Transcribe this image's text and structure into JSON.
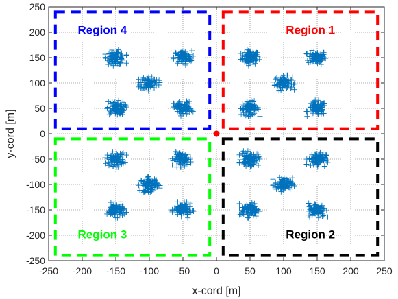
{
  "chart_data": {
    "type": "scatter",
    "xlabel": "x-cord [m]",
    "ylabel": "y-cord [m]",
    "xlim": [
      -250,
      250
    ],
    "ylim": [
      -250,
      250
    ],
    "xticks": [
      -250,
      -200,
      -150,
      -100,
      -50,
      0,
      50,
      100,
      150,
      200,
      250
    ],
    "yticks": [
      -250,
      -200,
      -150,
      -100,
      -50,
      0,
      50,
      100,
      150,
      200,
      250
    ],
    "xtick_labels": [
      "-250",
      "-200",
      "-150",
      "-100",
      "-50",
      "0",
      "50",
      "100",
      "150",
      "200",
      "250"
    ],
    "ytick_labels": [
      "-250",
      "-200",
      "-150",
      "-100",
      "-50",
      "0",
      "50",
      "100",
      "150",
      "200",
      "250"
    ],
    "grid": true,
    "marker_color": "#0072BD",
    "marker": "plus",
    "cluster_centers": [
      [
        50,
        150
      ],
      [
        150,
        150
      ],
      [
        100,
        100
      ],
      [
        50,
        50
      ],
      [
        150,
        50
      ],
      [
        -150,
        150
      ],
      [
        -50,
        150
      ],
      [
        -100,
        100
      ],
      [
        -150,
        50
      ],
      [
        -50,
        50
      ],
      [
        -150,
        -50
      ],
      [
        -50,
        -50
      ],
      [
        -100,
        -100
      ],
      [
        -150,
        -150
      ],
      [
        -50,
        -150
      ],
      [
        50,
        -50
      ],
      [
        150,
        -50
      ],
      [
        100,
        -100
      ],
      [
        50,
        -150
      ],
      [
        150,
        -150
      ]
    ],
    "cluster_spread": 12,
    "points_per_cluster": 90,
    "origin_point": {
      "x": 0,
      "y": 0,
      "color": "#FF0000"
    },
    "regions": [
      {
        "label": "Region 1",
        "color": "#FF0000",
        "x": [
          10,
          240
        ],
        "y": [
          10,
          240
        ],
        "label_pos": [
          140,
          205
        ]
      },
      {
        "label": "Region 2",
        "color": "#000000",
        "x": [
          10,
          240
        ],
        "y": [
          -240,
          -10
        ],
        "label_pos": [
          140,
          -198
        ]
      },
      {
        "label": "Region 3",
        "color": "#00FF00",
        "x": [
          -240,
          -10
        ],
        "y": [
          -240,
          -10
        ],
        "label_pos": [
          -170,
          -198
        ]
      },
      {
        "label": "Region 4",
        "color": "#0000FF",
        "x": [
          -240,
          -10
        ],
        "y": [
          10,
          240
        ],
        "label_pos": [
          -170,
          205
        ]
      }
    ]
  }
}
